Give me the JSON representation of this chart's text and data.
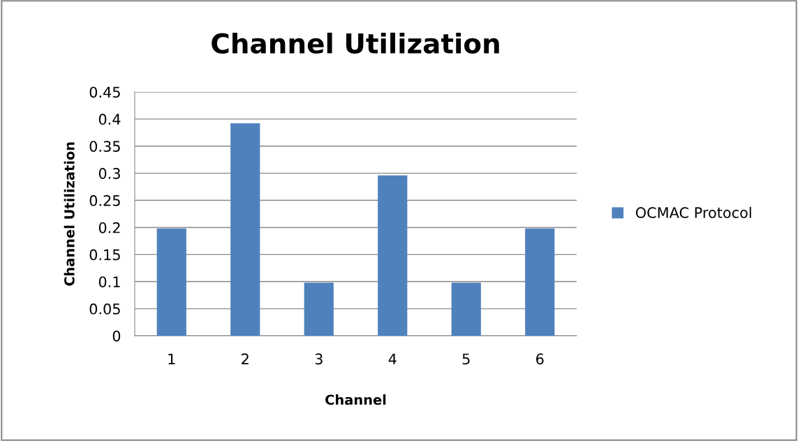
{
  "chart_data": {
    "type": "bar",
    "title": "Channel Utilization",
    "xlabel": "Channel",
    "ylabel": "Channel Utilization",
    "categories": [
      "1",
      "2",
      "3",
      "4",
      "5",
      "6"
    ],
    "series": [
      {
        "name": "OCMAC Protocol",
        "color": "#4f81bd",
        "values": [
          0.198,
          0.392,
          0.098,
          0.296,
          0.098,
          0.198
        ]
      }
    ],
    "ylim": [
      0,
      0.45
    ],
    "yticks": [
      0,
      0.05,
      0.1,
      0.15,
      0.2,
      0.25,
      0.3,
      0.35,
      0.4,
      0.45
    ],
    "grid": "y",
    "legend": "right"
  }
}
